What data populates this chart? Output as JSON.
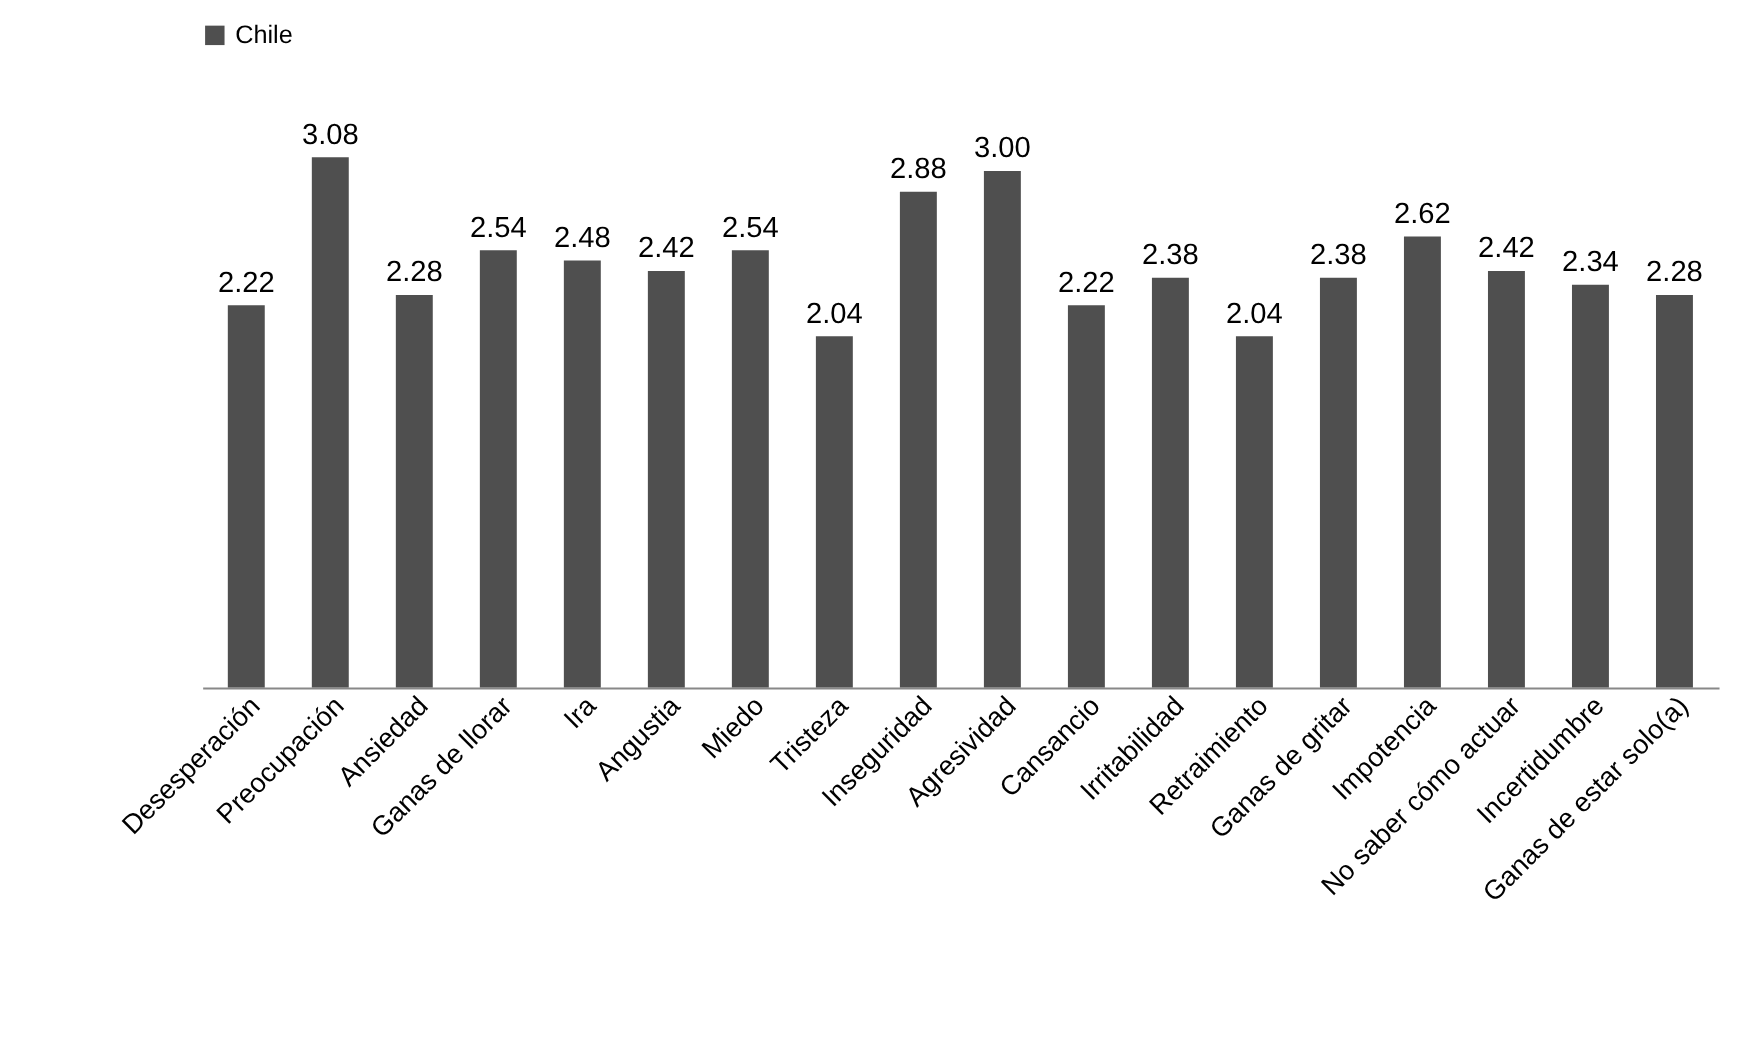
{
  "chart_data": {
    "type": "bar",
    "categories": [
      "Desesperación",
      "Preocupación",
      "Ansiedad",
      "Ganas de llorar",
      "Ira",
      "Angustia",
      "Miedo",
      "Tristeza",
      "Inseguridad",
      "Agresividad",
      "Cansancio",
      "Irritabilidad",
      "Retraimiento",
      "Ganas de gritar",
      "Impotencia",
      "No saber cómo actuar",
      "Incertidumbre",
      "Ganas de estar solo(a)"
    ],
    "series": [
      {
        "name": "Chile",
        "color": "#4f4f4f",
        "values": [
          2.22,
          3.08,
          2.28,
          2.54,
          2.48,
          2.42,
          2.54,
          2.04,
          2.88,
          3.0,
          2.22,
          2.38,
          2.04,
          2.38,
          2.62,
          2.42,
          2.34,
          2.28
        ],
        "value_labels": [
          "2.22",
          "3.08",
          "2.28",
          "2.54",
          "2.48",
          "2.42",
          "2.54",
          "2.04",
          "2.88",
          "3.00",
          "2.22",
          "2.38",
          "2.04",
          "2.38",
          "2.62",
          "2.42",
          "2.34",
          "2.28"
        ]
      }
    ],
    "legend": "top",
    "grid": false,
    "tick_labels": "x"
  }
}
